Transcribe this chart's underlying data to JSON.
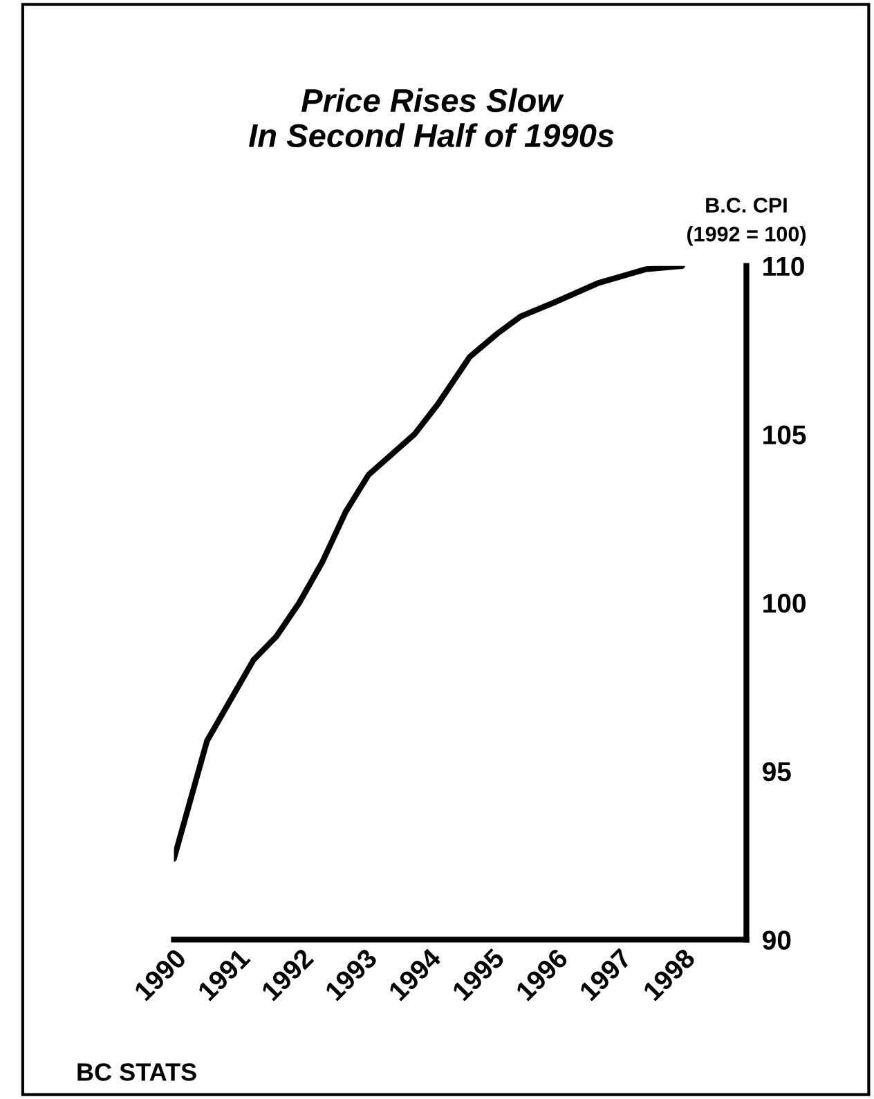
{
  "chart_data": {
    "type": "line",
    "title": "Price Rises Slow\nIn Second Half of 1990s",
    "ylabel": "B.C. CPI\n(1992 = 100)",
    "annotations": [
      "BC STATS"
    ],
    "x": [
      1990.0,
      1990.52,
      1991.25,
      1991.61,
      1991.97,
      1992.33,
      1992.7,
      1993.06,
      1993.78,
      1994.15,
      1994.65,
      1995.09,
      1995.45,
      1995.96,
      1996.68,
      1997.41,
      1997.99
    ],
    "series": [
      {
        "color": "#000000",
        "values": [
          92.4,
          95.9,
          98.3,
          99.0,
          100.0,
          101.2,
          102.7,
          103.8,
          105.0,
          105.9,
          107.3,
          108.0,
          108.5,
          108.9,
          109.5,
          109.9,
          110.0
        ]
      }
    ],
    "xlim": [
      1990,
      1999
    ],
    "xticks": [
      1990,
      1991,
      1992,
      1993,
      1994,
      1995,
      1996,
      1997,
      1998
    ],
    "ylim": [
      90,
      110
    ],
    "yticks": [
      90,
      95,
      100,
      105,
      110
    ],
    "grid": false,
    "legend": false,
    "marker": "none",
    "line_style": "solid"
  }
}
